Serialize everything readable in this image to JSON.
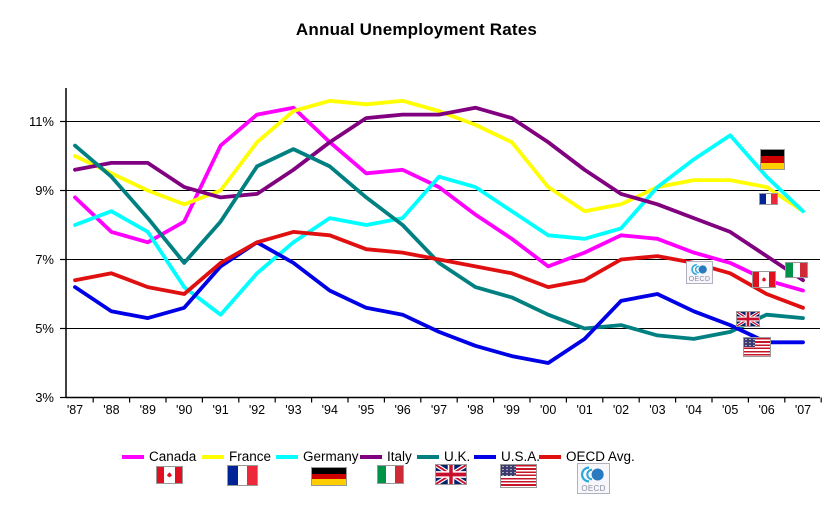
{
  "title": "Annual Unemployment Rates",
  "oecd_logo_label": "OECD",
  "legend": {
    "items": [
      {
        "label": "Canada",
        "color": "#FF00FF"
      },
      {
        "label": "France",
        "color": "#FFFF00"
      },
      {
        "label": "Germany",
        "color": "#00FFFF"
      },
      {
        "label": "Italy",
        "color": "#800080"
      },
      {
        "label": "U.K.",
        "color": "#008080"
      },
      {
        "label": "U.S.A.",
        "color": "#0000E6"
      },
      {
        "label": "OECD Avg.",
        "color": "#E01010"
      }
    ]
  },
  "chart_data": {
    "type": "line",
    "title": "Annual Unemployment Rates",
    "x_labels": [
      "'87",
      "'88",
      "'89",
      "'90",
      "'91",
      "'92",
      "'93",
      "'94",
      "'95",
      "'96",
      "'97",
      "'98",
      "'99",
      "'00",
      "'01",
      "'02",
      "'03",
      "'04",
      "'05",
      "'06",
      "'07"
    ],
    "y_tick_labels": [
      "3%",
      "5%",
      "7%",
      "9%",
      "11%"
    ],
    "y_tick_values": [
      3,
      5,
      7,
      9,
      11
    ],
    "ylim": [
      3,
      12
    ],
    "grid": "horizontal-black-lines",
    "legend_position": "bottom",
    "series": [
      {
        "name": "Canada",
        "color": "#FF00FF",
        "values": [
          8.8,
          7.8,
          7.5,
          8.1,
          10.3,
          11.2,
          11.4,
          10.4,
          9.5,
          9.6,
          9.1,
          8.3,
          7.6,
          6.8,
          7.2,
          7.7,
          7.6,
          7.2,
          6.9,
          6.4,
          6.1
        ]
      },
      {
        "name": "France",
        "color": "#FFFF00",
        "values": [
          10.0,
          9.5,
          9.0,
          8.6,
          9.0,
          10.4,
          11.3,
          11.6,
          11.5,
          11.6,
          11.3,
          10.9,
          10.4,
          9.1,
          8.4,
          8.6,
          9.1,
          9.3,
          9.3,
          9.1,
          8.4
        ]
      },
      {
        "name": "Germany",
        "color": "#00FFFF",
        "values": [
          8.0,
          8.4,
          7.8,
          6.2,
          5.4,
          6.6,
          7.5,
          8.2,
          8.0,
          8.2,
          9.4,
          9.1,
          8.4,
          7.7,
          7.6,
          7.9,
          9.1,
          9.9,
          10.6,
          9.4,
          8.4
        ]
      },
      {
        "name": "Italy",
        "color": "#800080",
        "values": [
          9.6,
          9.8,
          9.8,
          9.1,
          8.8,
          8.9,
          9.6,
          10.4,
          11.1,
          11.2,
          11.2,
          11.4,
          11.1,
          10.4,
          9.6,
          8.9,
          8.6,
          8.2,
          7.8,
          7.1,
          6.4
        ]
      },
      {
        "name": "U.K.",
        "color": "#008080",
        "values": [
          10.3,
          9.4,
          8.2,
          6.9,
          8.1,
          9.7,
          10.2,
          9.7,
          8.8,
          8.0,
          6.9,
          6.2,
          5.9,
          5.4,
          5.0,
          5.1,
          4.8,
          4.7,
          4.9,
          5.4,
          5.3
        ]
      },
      {
        "name": "U.S.A.",
        "color": "#0000E6",
        "values": [
          6.2,
          5.5,
          5.3,
          5.6,
          6.8,
          7.5,
          6.9,
          6.1,
          5.6,
          5.4,
          4.9,
          4.5,
          4.2,
          4.0,
          4.7,
          5.8,
          6.0,
          5.5,
          5.1,
          4.6,
          4.6
        ]
      },
      {
        "name": "OECD Avg.",
        "color": "#E01010",
        "values": [
          6.4,
          6.6,
          6.2,
          6.0,
          6.9,
          7.5,
          7.8,
          7.7,
          7.3,
          7.2,
          7.0,
          6.8,
          6.6,
          6.2,
          6.4,
          7.0,
          7.1,
          6.9,
          6.6,
          6.0,
          5.6
        ]
      }
    ],
    "annotations": [
      {
        "icon": "germany-flag-icon",
        "series": "Germany"
      },
      {
        "icon": "france-flag-icon",
        "series": "France"
      },
      {
        "icon": "oecd-logo-icon",
        "series": "OECD Avg."
      },
      {
        "icon": "canada-flag-icon",
        "series": "Canada"
      },
      {
        "icon": "italy-flag-icon",
        "series": "Italy"
      },
      {
        "icon": "uk-flag-icon",
        "series": "U.K."
      },
      {
        "icon": "usa-flag-icon",
        "series": "U.S.A."
      }
    ]
  }
}
